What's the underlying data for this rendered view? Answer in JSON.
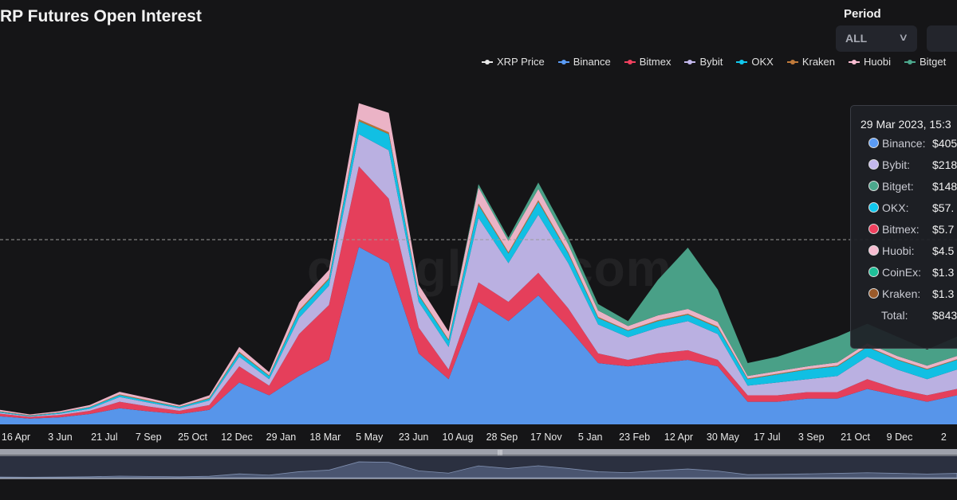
{
  "header": {
    "title": "XRP Futures Open Interest",
    "period_label": "Period",
    "period_value": "ALL"
  },
  "watermark": "coinglass.com",
  "tooltip": {
    "date": "29 Mar 2023, 15:3",
    "rows": [
      {
        "name": "Binance:",
        "value": "$405",
        "color": "#5b9cf6"
      },
      {
        "name": "Bybit:",
        "value": "$218",
        "color": "#c3b8ec"
      },
      {
        "name": "Bitget:",
        "value": "$148",
        "color": "#4ca88d"
      },
      {
        "name": "OKX:",
        "value": "$57.",
        "color": "#11c8ee"
      },
      {
        "name": "Bitmex:",
        "value": "$5.7",
        "color": "#f0415f"
      },
      {
        "name": "Huobi:",
        "value": "$4.5",
        "color": "#f7bcd0"
      },
      {
        "name": "CoinEx:",
        "value": "$1.3",
        "color": "#1fbf98"
      },
      {
        "name": "Kraken:",
        "value": "$1.3",
        "color": "#9a5a2a"
      }
    ],
    "total_label": "Total:",
    "total_value": "$843"
  },
  "chart_data": {
    "type": "area",
    "stacked": true,
    "title": "XRP Futures Open Interest",
    "legend": [
      {
        "name": "XRP Price",
        "color": "#e8e8e8"
      },
      {
        "name": "Binance",
        "color": "#5b9cf6"
      },
      {
        "name": "Bitmex",
        "color": "#f0415f"
      },
      {
        "name": "Bybit",
        "color": "#c3b8ec"
      },
      {
        "name": "OKX",
        "color": "#11c8ee"
      },
      {
        "name": "Kraken",
        "color": "#c07a3a"
      },
      {
        "name": "Huobi",
        "color": "#f7bcd0"
      },
      {
        "name": "Bitget",
        "color": "#4ca88d"
      }
    ],
    "legend_position": "top-right",
    "x_ticks": [
      "16 Apr",
      "3 Jun",
      "21 Jul",
      "7 Sep",
      "25 Oct",
      "12 Dec",
      "29 Jan",
      "18 Mar",
      "5 May",
      "23 Jun",
      "10 Aug",
      "28 Sep",
      "17 Nov",
      "5 Jan",
      "23 Feb",
      "12 Apr",
      "30 May",
      "17 Jul",
      "3 Sep",
      "21 Oct",
      "9 Dec",
      "2"
    ],
    "series": [
      {
        "name": "Binance",
        "color": "#5b9cf6",
        "values": [
          2.5,
          1.8,
          2.2,
          3.2,
          5,
          4,
          3.2,
          4.5,
          13,
          9,
          15,
          20,
          55,
          50,
          22,
          14,
          38,
          32,
          40,
          30,
          19,
          18,
          19,
          20,
          18,
          7,
          7,
          8,
          8,
          11,
          9,
          7,
          9
        ]
      },
      {
        "name": "Bitmex",
        "color": "#f0415f",
        "values": [
          0.8,
          0.5,
          0.7,
          1,
          2,
          1.5,
          1,
          1.5,
          5,
          3,
          13,
          17,
          25,
          20,
          8,
          3,
          6,
          6,
          7,
          6,
          3,
          2,
          3,
          3,
          2,
          2,
          2,
          2,
          2,
          3,
          2,
          2,
          2
        ]
      },
      {
        "name": "Bybit",
        "color": "#c3b8ec",
        "values": [
          0.3,
          0.2,
          0.4,
          0.6,
          1.5,
          1.2,
          0.8,
          1.4,
          3,
          2,
          5,
          6,
          10,
          15,
          8,
          7,
          20,
          12,
          18,
          14,
          9,
          7,
          8,
          9,
          8,
          3,
          4,
          4,
          5,
          7,
          6,
          5,
          6
        ]
      },
      {
        "name": "OKX",
        "color": "#11c8ee",
        "values": [
          0.3,
          0.2,
          0.3,
          0.5,
          0.6,
          0.5,
          0.4,
          0.6,
          1.2,
          1,
          2,
          2,
          4,
          5,
          2,
          2,
          4,
          3,
          4,
          3,
          2,
          2,
          2,
          2,
          2,
          2,
          2.5,
          3,
          3,
          3,
          3,
          3,
          3
        ]
      },
      {
        "name": "Kraken",
        "color": "#c07a3a",
        "values": [
          0.1,
          0.1,
          0.1,
          0.1,
          0.2,
          0.2,
          0.1,
          0.2,
          0.3,
          0.2,
          0.4,
          0.4,
          0.6,
          0.6,
          0.3,
          0.3,
          0.5,
          0.4,
          0.5,
          0.4,
          0.3,
          0.2,
          0.3,
          0.3,
          0.3,
          0.2,
          0.2,
          0.2,
          0.2,
          0.2,
          0.2,
          0.2,
          0.2
        ]
      },
      {
        "name": "Huobi",
        "color": "#f7bcd0",
        "values": [
          0.5,
          0.3,
          0.4,
          0.6,
          0.8,
          0.7,
          0.5,
          0.8,
          1.5,
          1,
          2.5,
          2.5,
          5,
          6,
          3,
          2.5,
          5,
          3.5,
          3.5,
          2.5,
          2,
          1.3,
          1.5,
          1.5,
          1.5,
          0.8,
          0.8,
          0.8,
          1,
          1,
          1,
          1,
          1
        ]
      },
      {
        "name": "Bitget",
        "color": "#4ca88d",
        "values": [
          0,
          0,
          0,
          0,
          0,
          0,
          0,
          0,
          0,
          0,
          0,
          0,
          0,
          0,
          0,
          0,
          1,
          1,
          2,
          2,
          2,
          1.5,
          11,
          19,
          10,
          4,
          4.5,
          6,
          8,
          6,
          6,
          5,
          6
        ]
      }
    ]
  }
}
